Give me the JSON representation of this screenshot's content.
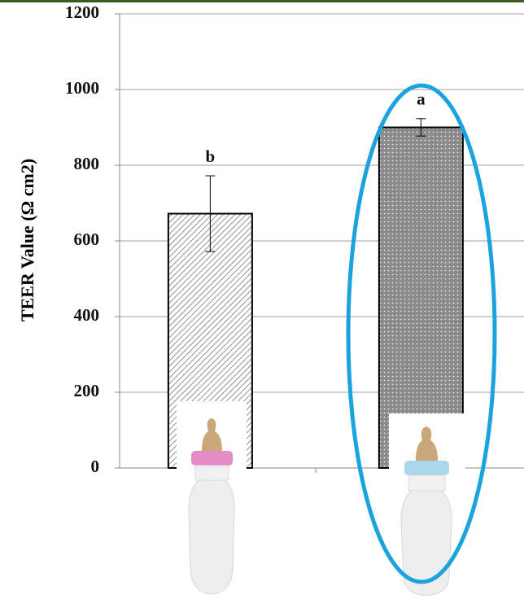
{
  "chart_data": {
    "type": "bar",
    "y_label": "TEER Value (Ω cm2)",
    "categories": [
      null,
      null
    ],
    "values": [
      672,
      900
    ],
    "errors": [
      100,
      23
    ],
    "annotations": [
      "b",
      "a"
    ],
    "ylim": [
      0,
      1200
    ],
    "yticks": [
      0,
      200,
      400,
      600,
      800,
      1000,
      1200
    ],
    "grid": true,
    "color": "#ffffff",
    "edge_color": "#000000"
  }
}
